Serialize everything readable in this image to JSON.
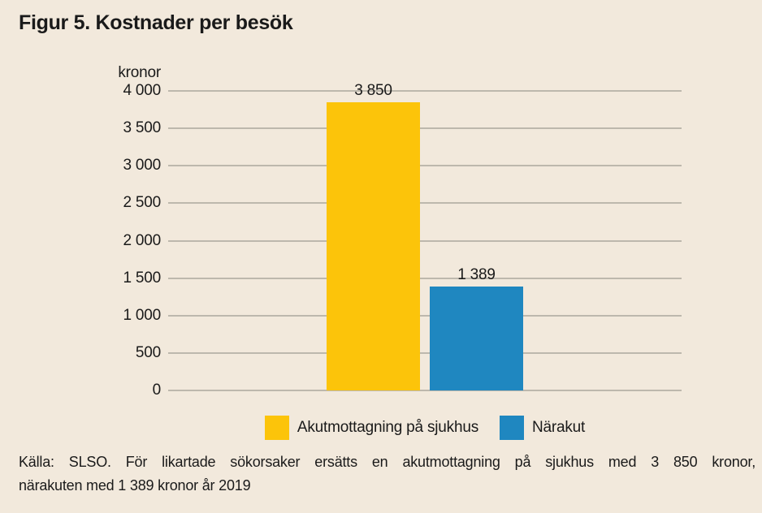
{
  "page": {
    "background": "#F2E9DC"
  },
  "chart_data": {
    "type": "bar",
    "title": "Figur 5. Kostnader per besök",
    "unit_label": "kronor",
    "categories": [
      "Akutmottagning på sjukhus",
      "Närakut"
    ],
    "values": [
      3850,
      1389
    ],
    "value_labels": [
      "3 850",
      "1 389"
    ],
    "bar_colors": [
      "#FCC40A",
      "#1F87C0"
    ],
    "ylim": [
      0,
      4000
    ],
    "ytick_step": 500,
    "ytick_labels": [
      "4 000",
      "3 500",
      "3 000",
      "2 500",
      "2 000",
      "1 500",
      "1 000",
      "500",
      "0"
    ],
    "grid": true,
    "gridline_color": "#BDB8AD",
    "legend_position": "bottom",
    "legend": [
      {
        "label": "Akutmottagning på sjukhus",
        "color": "#FCC40A"
      },
      {
        "label": "Närakut",
        "color": "#1F87C0"
      }
    ]
  },
  "source": {
    "line1": "Källa: SLSO. För likartade sökorsaker ersätts en akutmottagning på sjukhus med 3 850 kronor,",
    "line2": "närakuten med 1 389 kronor år 2019"
  }
}
